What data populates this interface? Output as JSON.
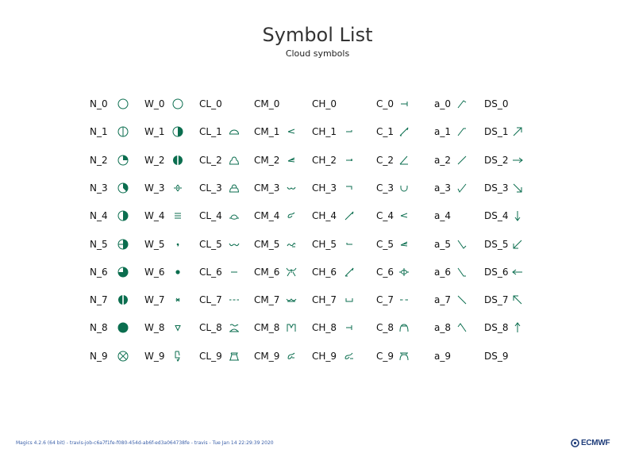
{
  "header": {
    "title": "Symbol List",
    "subtitle": "Cloud symbols"
  },
  "symbol_color": "#0b6e4f",
  "columns": [
    {
      "key": "N",
      "items": [
        {
          "code": "N_0",
          "icon": "circle-empty"
        },
        {
          "code": "N_1",
          "icon": "circle-vertical-line"
        },
        {
          "code": "N_2",
          "icon": "circle-quarter"
        },
        {
          "code": "N_3",
          "icon": "circle-three-eighths"
        },
        {
          "code": "N_4",
          "icon": "circle-half"
        },
        {
          "code": "N_5",
          "icon": "circle-half-plus-line"
        },
        {
          "code": "N_6",
          "icon": "circle-three-quarter"
        },
        {
          "code": "N_7",
          "icon": "circle-filled-with-gap"
        },
        {
          "code": "N_8",
          "icon": "circle-full"
        },
        {
          "code": "N_9",
          "icon": "circle-cross"
        }
      ]
    },
    {
      "key": "W",
      "items": [
        {
          "code": "W_0",
          "icon": "circle-empty"
        },
        {
          "code": "W_1",
          "icon": "circle-half"
        },
        {
          "code": "W_2",
          "icon": "circle-filled-with-gap"
        },
        {
          "code": "W_3",
          "icon": "sand-storm-arrow"
        },
        {
          "code": "W_4",
          "icon": "fog-lines"
        },
        {
          "code": "W_5",
          "icon": "drizzle-comma"
        },
        {
          "code": "W_6",
          "icon": "rain-dot"
        },
        {
          "code": "W_7",
          "icon": "snow-star"
        },
        {
          "code": "W_8",
          "icon": "shower-triangle"
        },
        {
          "code": "W_9",
          "icon": "thunderstorm-bolt"
        }
      ]
    },
    {
      "key": "CL",
      "items": [
        {
          "code": "CL_0",
          "icon": "none"
        },
        {
          "code": "CL_1",
          "icon": "cumulus-flat"
        },
        {
          "code": "CL_2",
          "icon": "cumulus-towering"
        },
        {
          "code": "CL_3",
          "icon": "cumulonimbus-calvus"
        },
        {
          "code": "CL_4",
          "icon": "stratocumulus-spread"
        },
        {
          "code": "CL_5",
          "icon": "stratocumulus-wave"
        },
        {
          "code": "CL_6",
          "icon": "stratus-line"
        },
        {
          "code": "CL_7",
          "icon": "fractostratus-dashes"
        },
        {
          "code": "CL_8",
          "icon": "cumulus-stratocumulus"
        },
        {
          "code": "CL_9",
          "icon": "cumulonimbus-incus"
        }
      ]
    },
    {
      "key": "CM",
      "items": [
        {
          "code": "CM_0",
          "icon": "none"
        },
        {
          "code": "CM_1",
          "icon": "altostratus-thin"
        },
        {
          "code": "CM_2",
          "icon": "altostratus-thick"
        },
        {
          "code": "CM_3",
          "icon": "altocumulus-thin"
        },
        {
          "code": "CM_4",
          "icon": "altocumulus-patches"
        },
        {
          "code": "CM_5",
          "icon": "altocumulus-bands"
        },
        {
          "code": "CM_6",
          "icon": "altocumulus-cumulus"
        },
        {
          "code": "CM_7",
          "icon": "altocumulus-double"
        },
        {
          "code": "CM_8",
          "icon": "altocumulus-castellanus"
        },
        {
          "code": "CM_9",
          "icon": "altocumulus-chaotic"
        }
      ]
    },
    {
      "key": "CH",
      "items": [
        {
          "code": "CH_0",
          "icon": "none"
        },
        {
          "code": "CH_1",
          "icon": "cirrus-hook-right"
        },
        {
          "code": "CH_2",
          "icon": "cirrus-dense"
        },
        {
          "code": "CH_3",
          "icon": "cirrus-anvil"
        },
        {
          "code": "CH_4",
          "icon": "cirrus-uncinus"
        },
        {
          "code": "CH_5",
          "icon": "cirrus-hook-left"
        },
        {
          "code": "CH_6",
          "icon": "cirrostratus-high"
        },
        {
          "code": "CH_7",
          "icon": "cirrostratus-cover"
        },
        {
          "code": "CH_8",
          "icon": "cirrostratus-partial"
        },
        {
          "code": "CH_9",
          "icon": "cirrocumulus"
        }
      ]
    },
    {
      "key": "C",
      "items": [
        {
          "code": "C_0",
          "icon": "cirrus-tick"
        },
        {
          "code": "C_1",
          "icon": "cirrocumulus-slash"
        },
        {
          "code": "C_2",
          "icon": "cirrostratus-slash"
        },
        {
          "code": "C_3",
          "icon": "altocumulus-u"
        },
        {
          "code": "C_4",
          "icon": "altostratus-thin"
        },
        {
          "code": "C_5",
          "icon": "nimbostratus-thick"
        },
        {
          "code": "C_6",
          "icon": "stratocumulus-lens"
        },
        {
          "code": "C_7",
          "icon": "stratus-dashes"
        },
        {
          "code": "C_8",
          "icon": "cumulus-arch"
        },
        {
          "code": "C_9",
          "icon": "cumulonimbus-flat-top"
        }
      ]
    },
    {
      "key": "a",
      "items": [
        {
          "code": "a_0",
          "icon": "tendency-rise-fall"
        },
        {
          "code": "a_1",
          "icon": "tendency-rise-steady"
        },
        {
          "code": "a_2",
          "icon": "tendency-rise"
        },
        {
          "code": "a_3",
          "icon": "tendency-fall-rise"
        },
        {
          "code": "a_4",
          "icon": "none"
        },
        {
          "code": "a_5",
          "icon": "tendency-fall-rise-less"
        },
        {
          "code": "a_6",
          "icon": "tendency-fall-steady"
        },
        {
          "code": "a_7",
          "icon": "tendency-fall"
        },
        {
          "code": "a_8",
          "icon": "tendency-steady-fall"
        },
        {
          "code": "a_9",
          "icon": "none"
        }
      ]
    },
    {
      "key": "DS",
      "items": [
        {
          "code": "DS_0",
          "icon": "none"
        },
        {
          "code": "DS_1",
          "icon": "arrow-ne"
        },
        {
          "code": "DS_2",
          "icon": "arrow-e"
        },
        {
          "code": "DS_3",
          "icon": "arrow-se"
        },
        {
          "code": "DS_4",
          "icon": "arrow-s"
        },
        {
          "code": "DS_5",
          "icon": "arrow-sw"
        },
        {
          "code": "DS_6",
          "icon": "arrow-w"
        },
        {
          "code": "DS_7",
          "icon": "arrow-nw"
        },
        {
          "code": "DS_8",
          "icon": "arrow-n"
        },
        {
          "code": "DS_9",
          "icon": "none"
        }
      ]
    }
  ],
  "footer": {
    "text": "Magics 4.2.6 (64 bit) - travis-job-c6a7f1fe-f080-454d-ab6f-ed3a064738fe - travis - Tue Jan 14 22:29:39 2020"
  },
  "logo": {
    "text": "ECMWF",
    "color": "#1f3d7a"
  }
}
